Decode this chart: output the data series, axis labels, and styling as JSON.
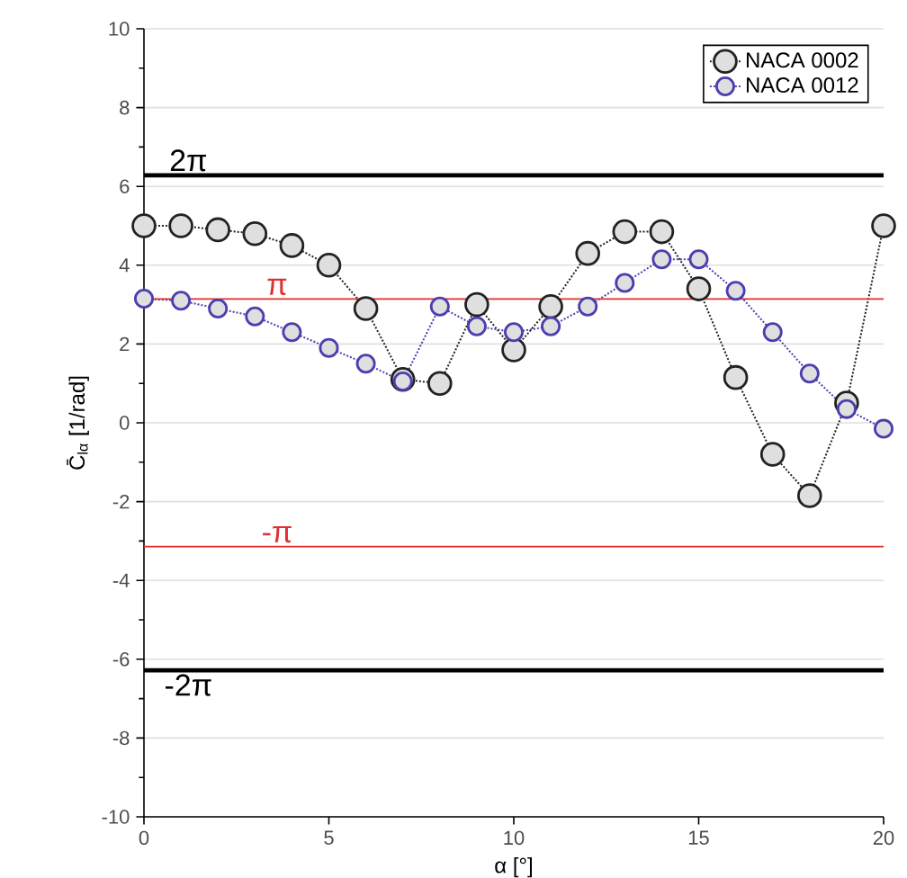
{
  "chart_data": {
    "type": "line",
    "xlabel": "α [°]",
    "ylabel": "C̄$_{lα}$ [1/rad]",
    "x": [
      0,
      1,
      2,
      3,
      4,
      5,
      6,
      7,
      8,
      9,
      10,
      11,
      12,
      13,
      14,
      15,
      16,
      17,
      18,
      19,
      20
    ],
    "series": [
      {
        "name": "NACA 0002",
        "color": "#222222",
        "values": [
          5.0,
          5.0,
          4.9,
          4.8,
          4.5,
          4.0,
          2.9,
          1.1,
          1.0,
          3.0,
          1.85,
          2.95,
          4.3,
          4.85,
          4.85,
          3.4,
          1.15,
          -0.8,
          -1.85,
          0.5,
          5.0
        ]
      },
      {
        "name": "NACA 0012",
        "color": "#4a3fb0",
        "values": [
          3.15,
          3.1,
          2.9,
          2.7,
          2.3,
          1.9,
          1.5,
          1.05,
          2.95,
          2.45,
          2.3,
          2.45,
          2.95,
          3.55,
          4.15,
          4.15,
          3.35,
          2.3,
          1.25,
          0.35,
          -0.15
        ]
      }
    ],
    "xlim": [
      0,
      20
    ],
    "xticks": [
      0,
      5,
      10,
      15,
      20
    ],
    "ylim": [
      -10,
      10
    ],
    "yticks": [
      -10,
      -8,
      -6,
      -4,
      -2,
      0,
      2,
      4,
      6,
      8,
      10
    ],
    "ref_lines": [
      {
        "axis": "y",
        "value": 6.283,
        "label": "2π",
        "color": "#000000"
      },
      {
        "axis": "y",
        "value": 3.1416,
        "label": "π",
        "color": "#e03030"
      },
      {
        "axis": "y",
        "value": -3.1416,
        "label": "-π",
        "color": "#e03030"
      },
      {
        "axis": "y",
        "value": -6.283,
        "label": "-2π",
        "color": "#000000"
      }
    ],
    "grid": "y",
    "legend": "top right",
    "marker": "circle",
    "line_style": "dotted"
  }
}
